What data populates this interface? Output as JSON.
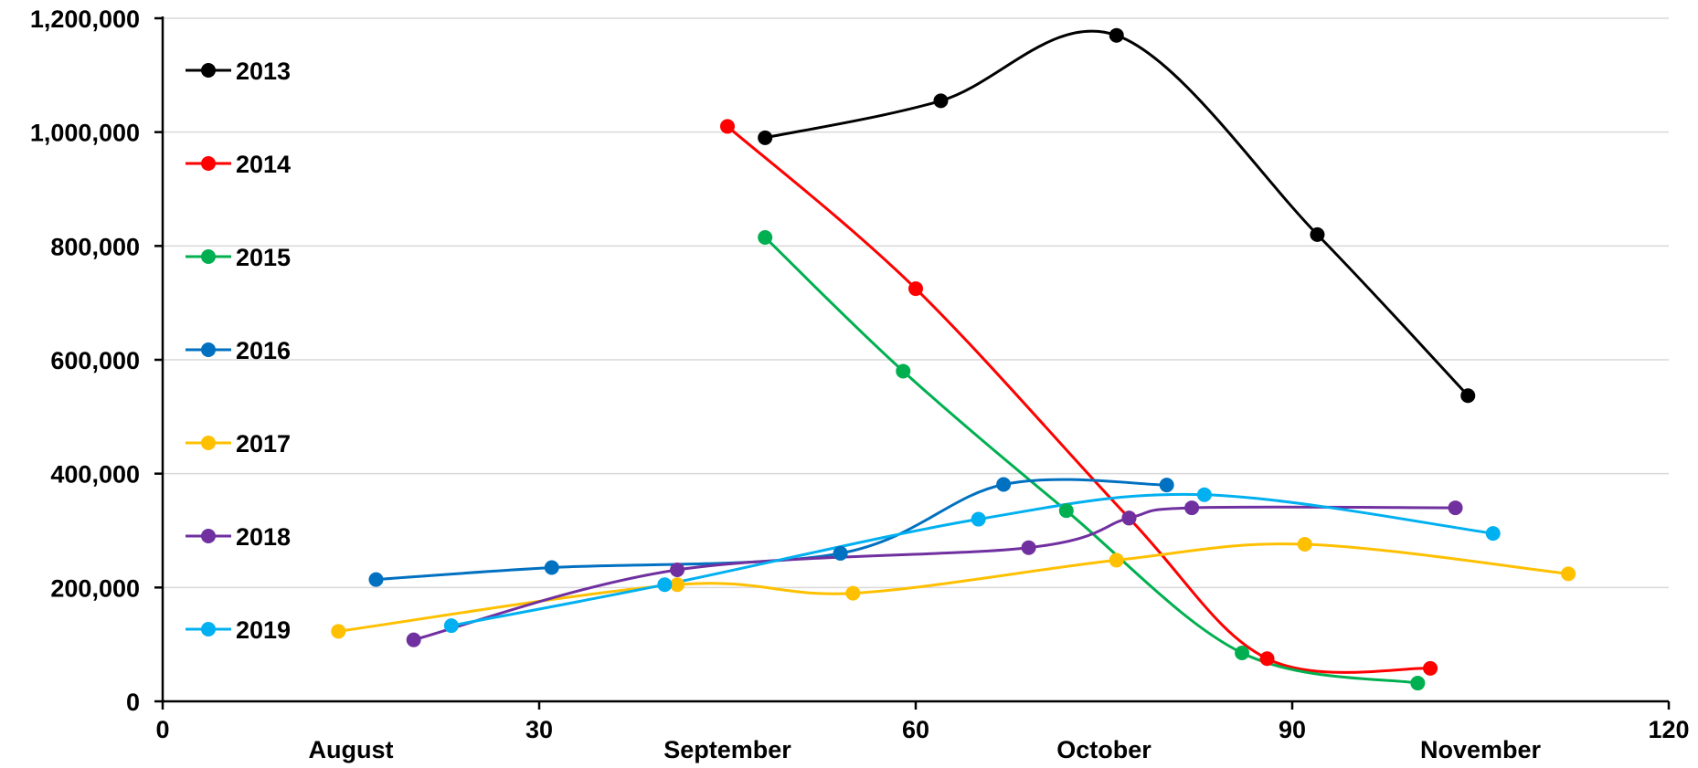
{
  "chart_data": {
    "type": "line",
    "title": "",
    "xlabel": "",
    "ylabel": "",
    "xlim": [
      0,
      120
    ],
    "ylim": [
      0,
      1200000
    ],
    "x_ticks": [
      0,
      30,
      60,
      90,
      120
    ],
    "x_tick_labels": [
      "0",
      "30",
      "60",
      "90",
      "120"
    ],
    "y_ticks": [
      0,
      200000,
      400000,
      600000,
      800000,
      1000000,
      1200000
    ],
    "y_tick_labels": [
      "0",
      "200,000",
      "400,000",
      "600,000",
      "800,000",
      "1,000,000",
      "1,200,000"
    ],
    "month_labels": [
      {
        "label": "August",
        "x": 15
      },
      {
        "label": "September",
        "x": 45
      },
      {
        "label": "October",
        "x": 75
      },
      {
        "label": "November",
        "x": 105
      }
    ],
    "grid": "horizontal",
    "legend_position": "top-left",
    "smooth": true,
    "series": [
      {
        "name": "2013",
        "color": "#000000",
        "points": [
          [
            48,
            990000
          ],
          [
            62,
            1055000
          ],
          [
            76,
            1170000
          ],
          [
            92,
            820000
          ],
          [
            104,
            537000
          ]
        ]
      },
      {
        "name": "2014",
        "color": "#ff0000",
        "points": [
          [
            45,
            1010000
          ],
          [
            60,
            725000
          ],
          [
            77,
            322000
          ],
          [
            88,
            75000
          ],
          [
            101,
            58000
          ]
        ]
      },
      {
        "name": "2015",
        "color": "#00b050",
        "points": [
          [
            48,
            815000
          ],
          [
            59,
            580000
          ],
          [
            72,
            335000
          ],
          [
            86,
            85000
          ],
          [
            100,
            32000
          ]
        ]
      },
      {
        "name": "2016",
        "color": "#0070c0",
        "points": [
          [
            17,
            214000
          ],
          [
            31,
            235000
          ],
          [
            54,
            260000
          ],
          [
            67,
            381000
          ],
          [
            80,
            380000
          ]
        ]
      },
      {
        "name": "2017",
        "color": "#ffc000",
        "points": [
          [
            14,
            123000
          ],
          [
            41,
            205000
          ],
          [
            55,
            190000
          ],
          [
            76,
            248000
          ],
          [
            91,
            276000
          ],
          [
            112,
            224000
          ]
        ]
      },
      {
        "name": "2018",
        "color": "#7030a0",
        "points": [
          [
            20,
            108000
          ],
          [
            41,
            231000
          ],
          [
            69,
            270000
          ],
          [
            77,
            322000
          ],
          [
            82,
            340000
          ],
          [
            103,
            340000
          ]
        ]
      },
      {
        "name": "2019",
        "color": "#00b0f0",
        "points": [
          [
            23,
            133000
          ],
          [
            40,
            205000
          ],
          [
            65,
            320000
          ],
          [
            83,
            363000
          ],
          [
            106,
            295000
          ]
        ]
      }
    ]
  }
}
